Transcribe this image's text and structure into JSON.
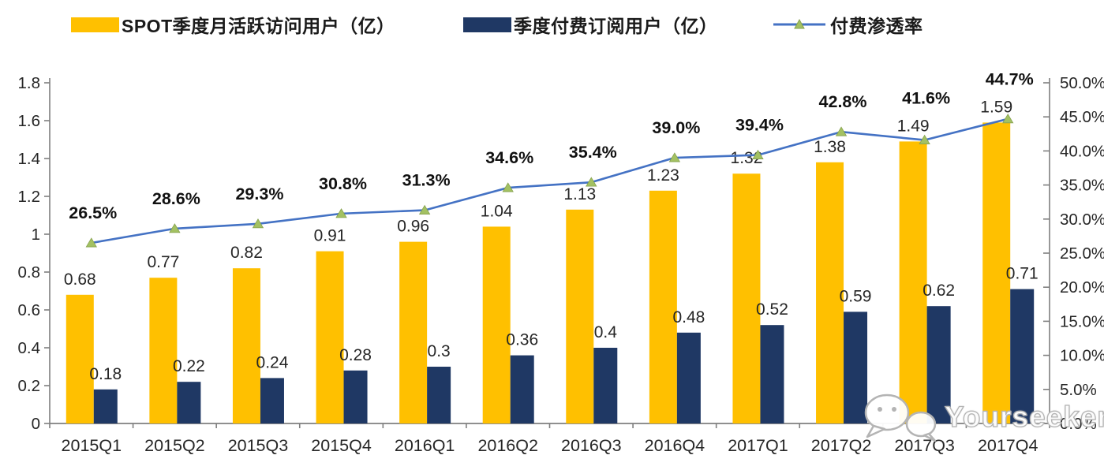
{
  "chart_data": {
    "type": "bar",
    "subtype": "combo-bar-line",
    "grid": false,
    "legend_position": "top",
    "categories": [
      "2015Q1",
      "2015Q2",
      "2015Q3",
      "2015Q4",
      "2016Q1",
      "2016Q2",
      "2016Q3",
      "2016Q4",
      "2017Q1",
      "2017Q2",
      "2017Q3",
      "2017Q4"
    ],
    "series": [
      {
        "name": "SPOT季度月活跃访问用户（亿）",
        "type": "bar",
        "axis": "left",
        "color": "#FFC000",
        "values": [
          0.68,
          0.77,
          0.82,
          0.91,
          0.96,
          1.04,
          1.13,
          1.23,
          1.32,
          1.38,
          1.49,
          1.59
        ],
        "labels": [
          "0.68",
          "0.77",
          "0.82",
          "0.91",
          "0.96",
          "1.04",
          "1.13",
          "1.23",
          "1.32",
          "1.38",
          "1.49",
          "1.59"
        ]
      },
      {
        "name": "季度付费订阅用户（亿）",
        "type": "bar",
        "axis": "left",
        "color": "#1F3864",
        "values": [
          0.18,
          0.22,
          0.24,
          0.28,
          0.3,
          0.36,
          0.4,
          0.48,
          0.52,
          0.59,
          0.62,
          0.71
        ],
        "labels": [
          "0.18",
          "0.22",
          "0.24",
          "0.28",
          "0.3",
          "0.36",
          "0.4",
          "0.48",
          "0.52",
          "0.59",
          "0.62",
          "0.71"
        ]
      },
      {
        "name": "付费渗透率",
        "type": "line",
        "axis": "right",
        "color": "#4472C4",
        "marker": "triangle",
        "marker_color": "#A3C162",
        "values": [
          26.5,
          28.6,
          29.3,
          30.8,
          31.3,
          34.6,
          35.4,
          39.0,
          39.4,
          42.8,
          41.6,
          44.7
        ],
        "labels": [
          "26.5%",
          "28.6%",
          "29.3%",
          "30.8%",
          "31.3%",
          "34.6%",
          "35.4%",
          "39.0%",
          "39.4%",
          "42.8%",
          "41.6%",
          "44.7%"
        ]
      }
    ],
    "left_axis": {
      "min": 0,
      "max": 1.8,
      "step": 0.2,
      "tick_labels": [
        "0",
        "0.2",
        "0.4",
        "0.6",
        "0.8",
        "1",
        "1.2",
        "1.4",
        "1.6",
        "1.8"
      ]
    },
    "right_axis": {
      "min": 0,
      "max": 50,
      "step": 5,
      "tick_labels": [
        "0.0%",
        "5.0%",
        "10.0%",
        "15.0%",
        "20.0%",
        "25.0%",
        "30.0%",
        "35.0%",
        "40.0%",
        "45.0%",
        "50.0%"
      ]
    }
  },
  "watermark": {
    "text": "Yourseeker",
    "icon": "wechat-icon"
  },
  "colors": {
    "axis": "#7f7f7f",
    "label_text": "#262626",
    "pct_label_text": "#111111"
  }
}
